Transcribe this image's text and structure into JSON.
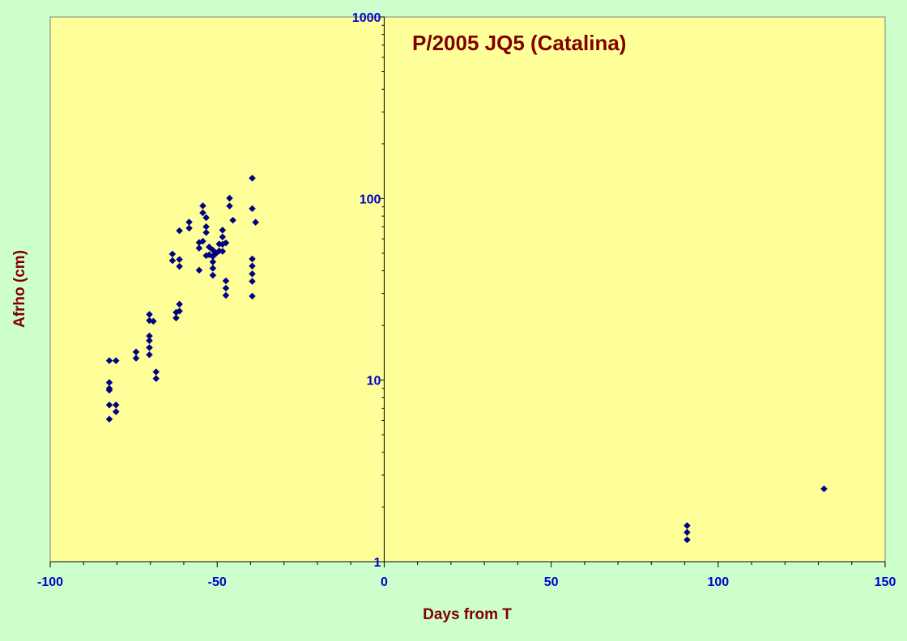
{
  "chart_data": {
    "type": "scatter",
    "title": "P/2005 JQ5 (Catalina)",
    "xlabel": "Days from T",
    "ylabel": "Afrho (cm)",
    "xlim": [
      -100,
      150
    ],
    "ylim": [
      1,
      1000
    ],
    "y_scale": "log",
    "x_ticks": [
      "-100",
      "-50",
      "0",
      "50",
      "100",
      "150"
    ],
    "y_ticks": [
      "1",
      "10",
      "100",
      "1000"
    ],
    "grid": false,
    "legend": "none",
    "colors": {
      "background": "#ccffcc",
      "plot_area": "#ffff99",
      "marker": "#000080",
      "tick_labels": "#0000cc",
      "titles": "#800000"
    },
    "series": [
      {
        "marker": "diamond",
        "points": [
          [
            -82.3,
            12.8
          ],
          [
            -82.3,
            9.7
          ],
          [
            -82.3,
            9.0
          ],
          [
            -82.3,
            8.8
          ],
          [
            -82.3,
            7.3
          ],
          [
            -82.3,
            6.1
          ],
          [
            -80.3,
            12.8
          ],
          [
            -80.3,
            7.3
          ],
          [
            -80.3,
            6.7
          ],
          [
            -74.3,
            14.3
          ],
          [
            -74.3,
            13.2
          ],
          [
            -70.3,
            23.0
          ],
          [
            -70.3,
            21.3
          ],
          [
            -70.3,
            17.5
          ],
          [
            -70.3,
            16.5
          ],
          [
            -70.3,
            15.1
          ],
          [
            -70.3,
            13.8
          ],
          [
            -69.1,
            21.1
          ],
          [
            -68.3,
            11.1
          ],
          [
            -68.3,
            10.2
          ],
          [
            -63.4,
            49.5
          ],
          [
            -63.4,
            45.5
          ],
          [
            -62.3,
            23.6
          ],
          [
            -62.3,
            22.0
          ],
          [
            -61.3,
            66.5
          ],
          [
            -61.3,
            46.2
          ],
          [
            -61.3,
            42.3
          ],
          [
            -61.3,
            26.2
          ],
          [
            -61.3,
            24.0
          ],
          [
            -58.4,
            74.2
          ],
          [
            -58.4,
            68.7
          ],
          [
            -55.4,
            57.3
          ],
          [
            -55.4,
            53.3
          ],
          [
            -55.4,
            40.3
          ],
          [
            -54.3,
            91.2
          ],
          [
            -54.3,
            83.5
          ],
          [
            -54.3,
            58.2
          ],
          [
            -53.3,
            78.5
          ],
          [
            -53.3,
            70.0
          ],
          [
            -53.3,
            65.0
          ],
          [
            -53.3,
            48.5
          ],
          [
            -52.4,
            54.1
          ],
          [
            -52.4,
            49.0
          ],
          [
            -51.3,
            52.0
          ],
          [
            -51.3,
            48.0
          ],
          [
            -51.3,
            44.8
          ],
          [
            -51.3,
            41.3
          ],
          [
            -51.3,
            37.8
          ],
          [
            -50.3,
            50.0
          ],
          [
            -49.4,
            51.5
          ],
          [
            -49.4,
            56.2
          ],
          [
            -48.4,
            67.0
          ],
          [
            -48.4,
            61.5
          ],
          [
            -48.4,
            56.0
          ],
          [
            -48.4,
            51.2
          ],
          [
            -47.4,
            57.0
          ],
          [
            -47.4,
            35.2
          ],
          [
            -47.4,
            32.1
          ],
          [
            -47.4,
            29.3
          ],
          [
            -46.3,
            100.5
          ],
          [
            -46.3,
            91.0
          ],
          [
            -45.3,
            76.0
          ],
          [
            -39.5,
            129.5
          ],
          [
            -39.5,
            88.0
          ],
          [
            -39.5,
            46.5
          ],
          [
            -39.5,
            42.5
          ],
          [
            -39.5,
            38.5
          ],
          [
            -39.5,
            35.0
          ],
          [
            -39.5,
            29.0
          ],
          [
            -38.5,
            74.0
          ],
          [
            90.7,
            1.58
          ],
          [
            90.7,
            1.45
          ],
          [
            90.7,
            1.32
          ],
          [
            131.7,
            2.52
          ]
        ]
      }
    ]
  }
}
